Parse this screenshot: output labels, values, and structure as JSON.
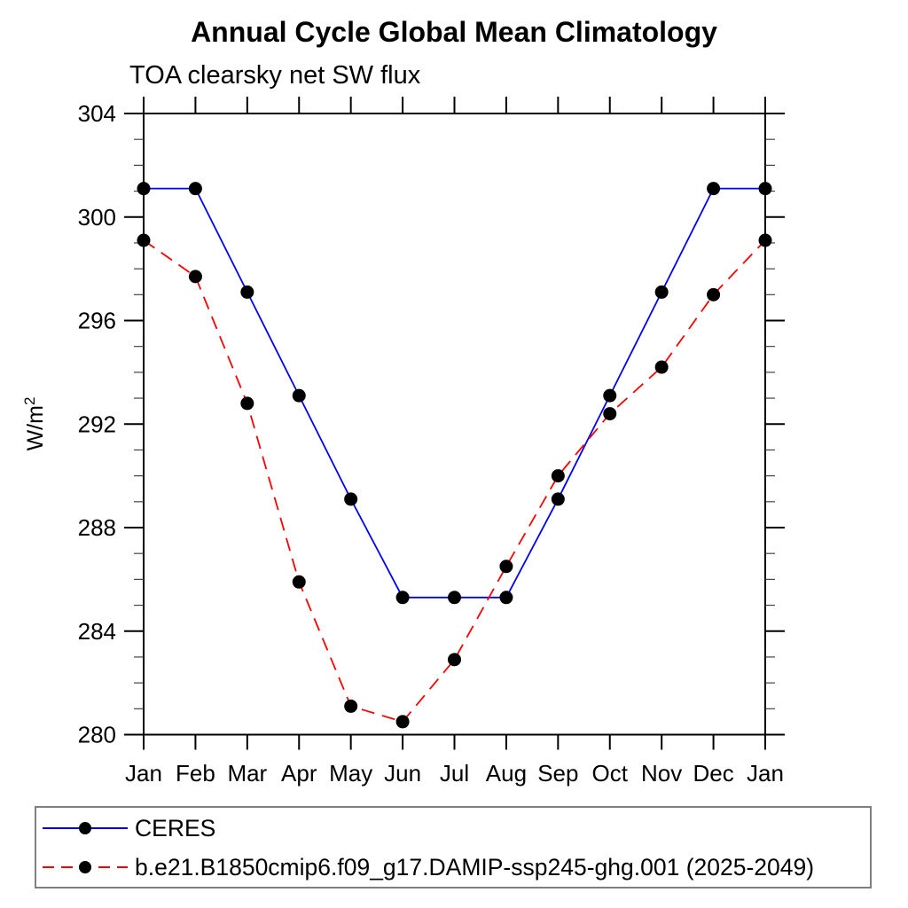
{
  "chart_data": {
    "type": "line",
    "title": "Annual Cycle Global Mean Climatology",
    "subtitle": "TOA clearsky net SW flux",
    "ylabel": {
      "text": "W/m",
      "superscript": "2"
    },
    "categories": [
      "Jan",
      "Feb",
      "Mar",
      "Apr",
      "May",
      "Jun",
      "Jul",
      "Aug",
      "Sep",
      "Oct",
      "Nov",
      "Dec",
      "Jan"
    ],
    "ylim": [
      280,
      304
    ],
    "ytick_step_major": 4,
    "ytick_step_minor": 1,
    "ytick_labels": [
      "280",
      "284",
      "288",
      "292",
      "296",
      "300",
      "304"
    ],
    "grid": false,
    "legend_position": "bottom",
    "marker": {
      "shape": "circle",
      "color": "#000000"
    },
    "axis_color": "#000000",
    "series": [
      {
        "name": "CERES",
        "color": "#0000ff",
        "line_style": "solid",
        "values": [
          301.1,
          301.1,
          297.1,
          293.1,
          289.1,
          285.3,
          285.3,
          285.3,
          289.1,
          293.1,
          297.1,
          301.1,
          301.1
        ]
      },
      {
        "name": "b.e21.B1850cmip6.f09_g17.DAMIP-ssp245-ghg.001 (2025-2049)",
        "color": "#ff0000",
        "line_style": "dashed",
        "values": [
          299.1,
          297.7,
          292.8,
          285.9,
          281.1,
          280.5,
          282.9,
          286.5,
          290.0,
          292.4,
          294.2,
          297.0,
          299.1
        ]
      }
    ]
  }
}
